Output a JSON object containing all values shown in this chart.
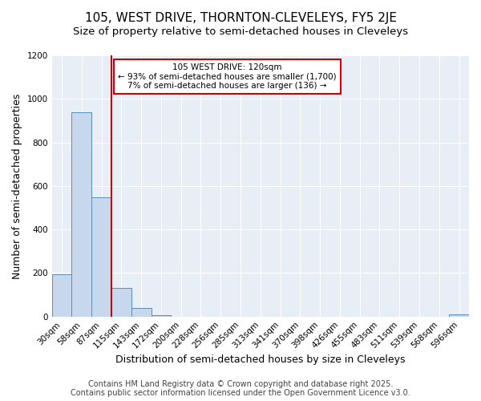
{
  "title1": "105, WEST DRIVE, THORNTON-CLEVELEYS, FY5 2JE",
  "title2": "Size of property relative to semi-detached houses in Cleveleys",
  "xlabel": "Distribution of semi-detached houses by size in Cleveleys",
  "ylabel": "Number of semi-detached properties",
  "categories": [
    "30sqm",
    "58sqm",
    "87sqm",
    "115sqm",
    "143sqm",
    "172sqm",
    "200sqm",
    "228sqm",
    "256sqm",
    "285sqm",
    "313sqm",
    "341sqm",
    "370sqm",
    "398sqm",
    "426sqm",
    "455sqm",
    "483sqm",
    "511sqm",
    "539sqm",
    "568sqm",
    "596sqm"
  ],
  "values": [
    193,
    937,
    549,
    130,
    38,
    8,
    0,
    0,
    0,
    0,
    0,
    0,
    0,
    0,
    0,
    0,
    0,
    0,
    0,
    0,
    10
  ],
  "bar_color": "#c8d8ec",
  "bar_edge_color": "#5b8db8",
  "vline_color": "#cc0000",
  "annotation_text": "105 WEST DRIVE: 120sqm\n← 93% of semi-detached houses are smaller (1,700)\n7% of semi-detached houses are larger (136) →",
  "annotation_box_color": "#ffffff",
  "annotation_box_edge": "#cc0000",
  "ylim": [
    0,
    1200
  ],
  "yticks": [
    0,
    200,
    400,
    600,
    800,
    1000,
    1200
  ],
  "fig_bg_color": "#ffffff",
  "plot_bg_color": "#e8eef5",
  "grid_color": "#ffffff",
  "footer1": "Contains HM Land Registry data © Crown copyright and database right 2025.",
  "footer2": "Contains public sector information licensed under the Open Government Licence v3.0.",
  "title_fontsize": 11,
  "subtitle_fontsize": 9.5,
  "axis_label_fontsize": 9,
  "tick_fontsize": 7.5,
  "footer_fontsize": 7,
  "annot_fontsize": 7.5
}
